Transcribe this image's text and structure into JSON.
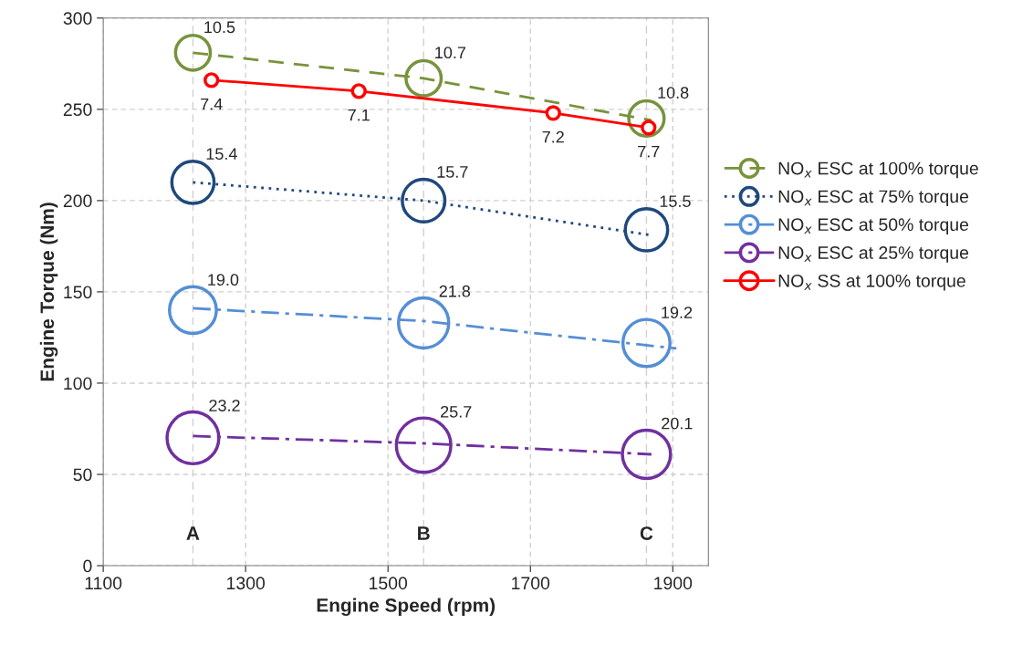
{
  "chart_data": {
    "type": "bubble",
    "xlabel": "Engine Speed (rpm)",
    "ylabel": "Engine Torque (Nm)",
    "xlim": [
      1100,
      1950
    ],
    "xticks": [
      1100,
      1300,
      1500,
      1700,
      1900
    ],
    "ylim": [
      0,
      300
    ],
    "yticks": [
      0,
      50,
      100,
      150,
      200,
      250,
      300
    ],
    "grid": true,
    "legend": "right",
    "ref_lines": [
      {
        "axis": "x",
        "value": 1226,
        "label": "A"
      },
      {
        "axis": "x",
        "value": 1550,
        "label": "B"
      },
      {
        "axis": "x",
        "value": 1863,
        "label": "C"
      }
    ],
    "annotations": [
      {
        "text": "7.4",
        "x": 1252,
        "y": 266
      },
      {
        "text": "7.1",
        "x": 1459,
        "y": 260
      },
      {
        "text": "7.2",
        "x": 1732,
        "y": 248
      },
      {
        "text": "7.7",
        "x": 1866,
        "y": 240
      }
    ],
    "series": [
      {
        "name": "NO$_{x}$ ESC at 100% torque",
        "color": "#77933c",
        "x": [
          1226,
          1550,
          1863
        ],
        "values": [
          281,
          267,
          245
        ],
        "sizes": [
          10.5,
          10.7,
          10.8
        ],
        "value_labels": [
          "10.5",
          "10.7",
          "10.8"
        ]
      },
      {
        "type": "line",
        "color": "#77933c",
        "line_style": "dashed",
        "x": [
          1226,
          1550,
          1870
        ],
        "values": [
          281,
          267,
          244
        ]
      },
      {
        "name": "NO$_{x}$ ESC at 75% torque",
        "color": "#1f497d",
        "x": [
          1226,
          1550,
          1863
        ],
        "values": [
          210,
          200,
          184
        ],
        "sizes": [
          15.4,
          15.7,
          15.5
        ],
        "value_labels": [
          "15.4",
          "15.7",
          "15.5"
        ]
      },
      {
        "type": "line",
        "color": "#1f497d",
        "line_style": "dotted",
        "x": [
          1226,
          1550,
          1870
        ],
        "values": [
          210,
          200,
          181
        ]
      },
      {
        "name": "NO$_{x}$ ESC at 50% torque",
        "color": "#558ed5",
        "x": [
          1226,
          1550,
          1863
        ],
        "values": [
          140,
          133,
          122
        ],
        "sizes": [
          19.0,
          21.8,
          19.2
        ],
        "value_labels": [
          "19.0",
          "21.8",
          "19.2"
        ]
      },
      {
        "type": "line",
        "color": "#558ed5",
        "line_style": "dashdot",
        "x": [
          1226,
          1550,
          1905
        ],
        "values": [
          141,
          134,
          119
        ]
      },
      {
        "name": "NO$_{x}$ ESC at 25% torque",
        "color": "#7030a0",
        "x": [
          1226,
          1550,
          1863
        ],
        "values": [
          70,
          66,
          61
        ],
        "sizes": [
          23.2,
          25.7,
          20.1
        ],
        "value_labels": [
          "23.2",
          "25.7",
          "20.1"
        ]
      },
      {
        "type": "line",
        "color": "#7030a0",
        "line_style": "dashdot",
        "x": [
          1226,
          1550,
          1870
        ],
        "values": [
          71,
          67,
          61
        ]
      },
      {
        "name": "NO$_{x}$ SS at 100% torque",
        "type": "line",
        "marker": "circle",
        "line_style": "solid",
        "color": "#ff0000",
        "x": [
          1252,
          1459,
          1732,
          1866
        ],
        "values": [
          266,
          260,
          248,
          240
        ]
      }
    ]
  }
}
